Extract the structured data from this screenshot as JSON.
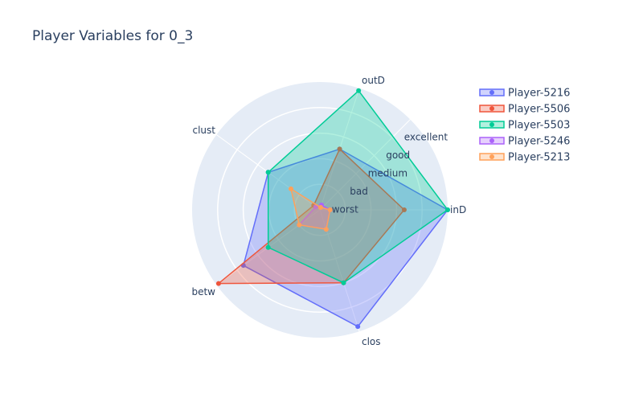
{
  "chart_data": {
    "type": "radar",
    "title": "Player Variables for 0_3",
    "axes": [
      "inD",
      "outD",
      "clust",
      "betw",
      "clos"
    ],
    "radial_levels": [
      "worst",
      "bad",
      "medium",
      "good",
      "excellent"
    ],
    "radial_range": [
      0,
      5
    ],
    "grid": true,
    "legend_position": "top-right",
    "series": [
      {
        "name": "Player-5216",
        "color": "#636efa",
        "values": [
          5,
          2.5,
          2.5,
          3.7,
          4.8
        ]
      },
      {
        "name": "Player-5506",
        "color": "#ef553b",
        "values": [
          3.3,
          2.5,
          0.3,
          4.9,
          3.0
        ]
      },
      {
        "name": "Player-5503",
        "color": "#00cc96",
        "values": [
          5,
          4.9,
          2.5,
          2.5,
          3.0
        ]
      },
      {
        "name": "Player-5246",
        "color": "#ab63fa",
        "values": [
          0.4,
          0.2,
          0.2,
          1.0,
          0.8
        ]
      },
      {
        "name": "Player-5213",
        "color": "#ffa15a",
        "values": [
          0.4,
          0.1,
          1.4,
          1.0,
          0.8
        ]
      }
    ]
  }
}
